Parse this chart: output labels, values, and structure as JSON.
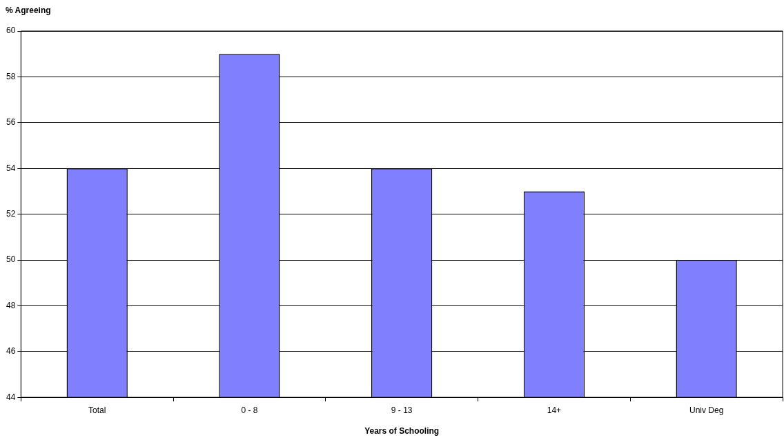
{
  "chart_data": {
    "type": "bar",
    "ylabel": "% Agreeing",
    "xlabel": "Years of Schooling",
    "categories": [
      "Total",
      "0 - 8",
      "9 - 13",
      "14+",
      "Univ Deg"
    ],
    "values": [
      54,
      59,
      54,
      53,
      50
    ],
    "color": "#8080ff",
    "ylim": [
      44,
      60
    ],
    "yticks": [
      44,
      46,
      48,
      50,
      52,
      54,
      56,
      58,
      60
    ],
    "grid": "y",
    "legend": false
  }
}
